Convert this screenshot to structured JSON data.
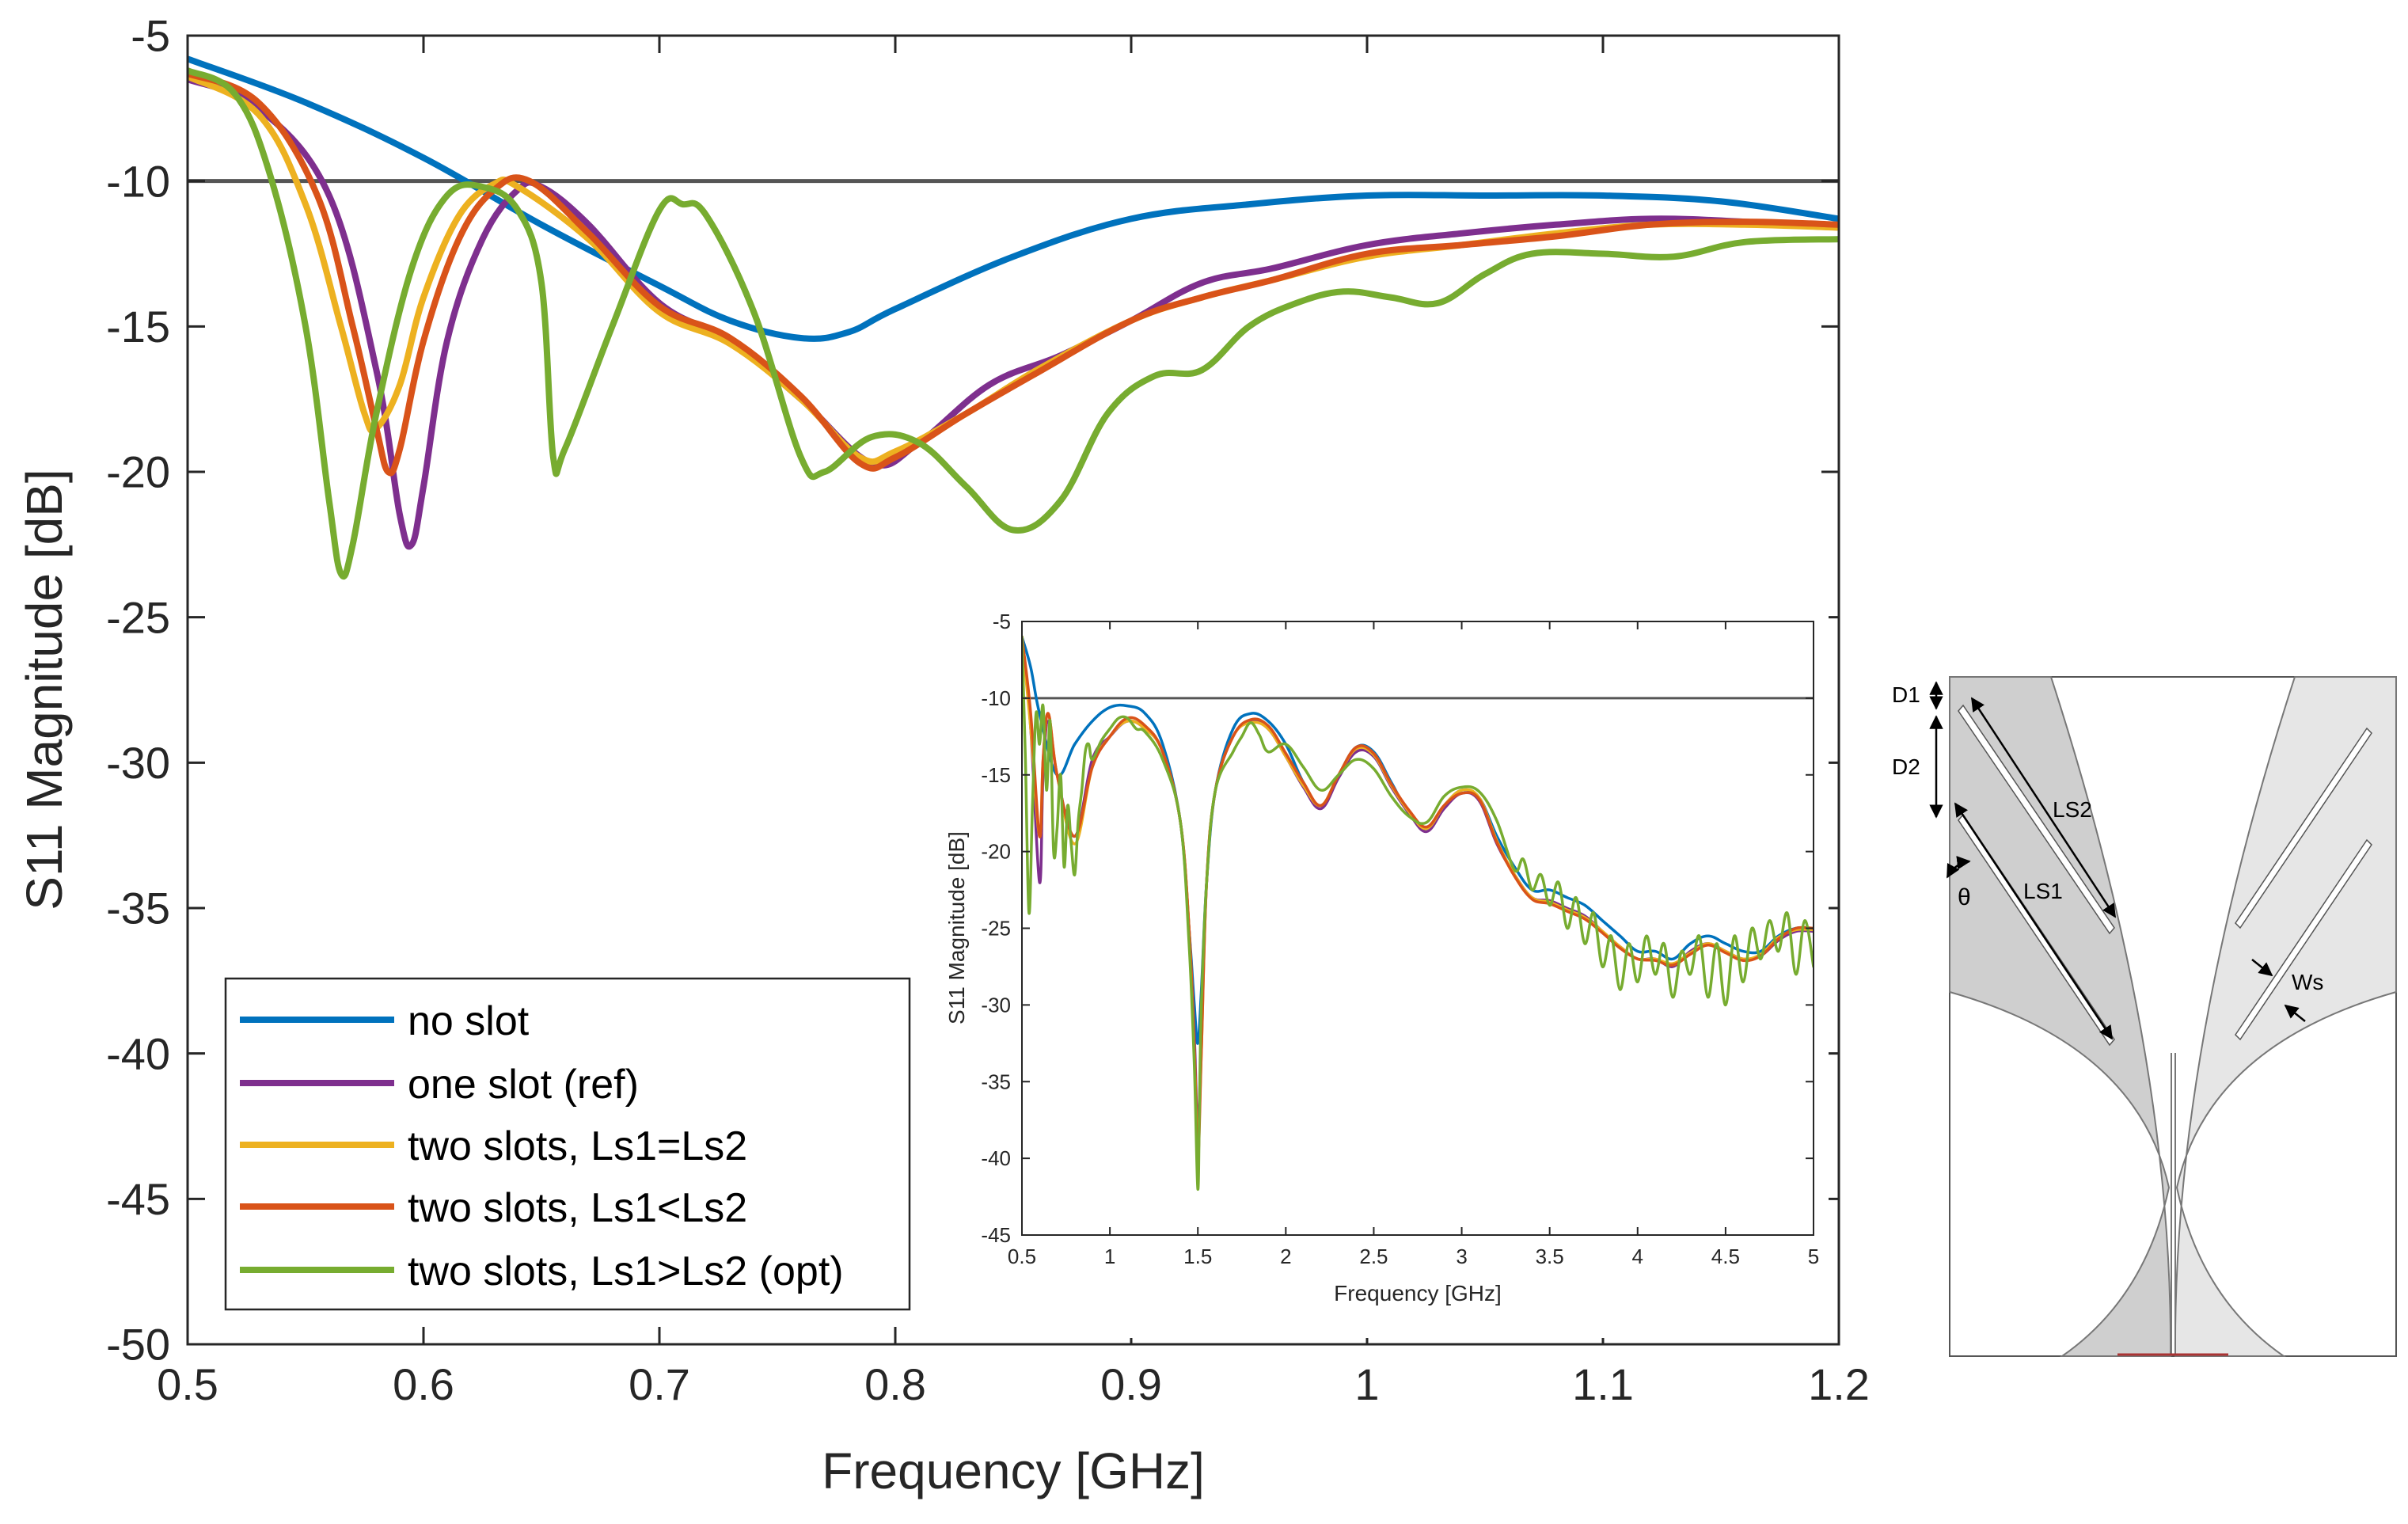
{
  "colors": {
    "no_slot": "#0072BD",
    "one_slot": "#7E2F8E",
    "ls1_eq_ls2": "#EDB120",
    "ls1_lt_ls2": "#D95319",
    "ls1_gt_ls2": "#77AC30",
    "threshold": "#555555",
    "diagram_dark": "#cfcfcf",
    "diagram_light": "#e6e6e6"
  },
  "chart_data": [
    {
      "id": "main",
      "type": "line",
      "title": "",
      "xlabel": "Frequency [GHz]",
      "ylabel": "S11 Magnitude [dB]",
      "xlim": [
        0.5,
        1.2
      ],
      "ylim": [
        -50,
        -5
      ],
      "xticks": [
        0.5,
        0.6,
        0.7,
        0.8,
        0.9,
        1,
        1.1,
        1.2
      ],
      "xtick_labels": [
        "0.5",
        "0.6",
        "0.7",
        "0.8",
        "0.9",
        "1",
        "1.1",
        "1.2"
      ],
      "yticks": [
        -50,
        -45,
        -40,
        -35,
        -30,
        -25,
        -20,
        -15,
        -10,
        -5
      ],
      "ytick_labels": [
        "-50",
        "-45",
        "-40",
        "-35",
        "-30",
        "-25",
        "-20",
        "-15",
        "-10",
        "-5"
      ],
      "grid": false,
      "legend_position": "bottom-left",
      "threshold": -10,
      "series": [
        {
          "name": "no slot",
          "color_key": "no_slot",
          "x": [
            0.5,
            0.55,
            0.6,
            0.65,
            0.7,
            0.73,
            0.76,
            0.78,
            0.8,
            0.85,
            0.9,
            0.95,
            1.0,
            1.05,
            1.1,
            1.15,
            1.2
          ],
          "y": [
            -5.8,
            -7.3,
            -9.2,
            -11.5,
            -13.6,
            -14.8,
            -15.4,
            -15.2,
            -14.4,
            -12.6,
            -11.3,
            -10.8,
            -10.5,
            -10.5,
            -10.5,
            -10.7,
            -11.3
          ]
        },
        {
          "name": "one slot (ref)",
          "color_key": "one_slot",
          "x": [
            0.5,
            0.53,
            0.56,
            0.58,
            0.59,
            0.595,
            0.6,
            0.61,
            0.625,
            0.64,
            0.65,
            0.67,
            0.7,
            0.73,
            0.76,
            0.79,
            0.81,
            0.84,
            0.87,
            0.9,
            0.93,
            0.96,
            1.0,
            1.04,
            1.08,
            1.12,
            1.16,
            1.2
          ],
          "y": [
            -6.5,
            -7.5,
            -10.5,
            -16.5,
            -21.5,
            -22.5,
            -20.5,
            -15.5,
            -12,
            -10.3,
            -10.2,
            -11.5,
            -14.2,
            -15.5,
            -17.5,
            -19.7,
            -19,
            -17,
            -16,
            -14.8,
            -13.5,
            -13,
            -12.2,
            -11.8,
            -11.5,
            -11.3,
            -11.4,
            -11.6
          ]
        },
        {
          "name": "two slots, Ls1=Ls2",
          "color_key": "ls1_eq_ls2",
          "x": [
            0.5,
            0.53,
            0.55,
            0.565,
            0.575,
            0.58,
            0.59,
            0.6,
            0.615,
            0.63,
            0.64,
            0.67,
            0.7,
            0.73,
            0.76,
            0.785,
            0.8,
            0.83,
            0.86,
            0.9,
            0.93,
            0.96,
            1.0,
            1.04,
            1.08,
            1.12,
            1.16,
            1.2
          ],
          "y": [
            -6.4,
            -7.7,
            -10.8,
            -15,
            -18,
            -18.5,
            -17,
            -14,
            -11.2,
            -10.1,
            -10.2,
            -12,
            -14.5,
            -15.6,
            -17.5,
            -19.5,
            -19.3,
            -18,
            -16.5,
            -14.8,
            -14,
            -13.4,
            -12.6,
            -12.2,
            -11.8,
            -11.5,
            -11.5,
            -11.6
          ]
        },
        {
          "name": "two slots, Ls1<Ls2",
          "color_key": "ls1_lt_ls2",
          "x": [
            0.5,
            0.53,
            0.555,
            0.57,
            0.58,
            0.585,
            0.59,
            0.6,
            0.615,
            0.63,
            0.645,
            0.67,
            0.7,
            0.73,
            0.76,
            0.785,
            0.8,
            0.83,
            0.86,
            0.9,
            0.93,
            0.96,
            1.0,
            1.04,
            1.08,
            1.12,
            1.16,
            1.2
          ],
          "y": [
            -6.3,
            -7.3,
            -10.5,
            -15,
            -18.5,
            -20,
            -19.2,
            -15.5,
            -12,
            -10.3,
            -10,
            -11.8,
            -14.3,
            -15.4,
            -17.4,
            -19.7,
            -19.5,
            -18,
            -16.6,
            -14.8,
            -14,
            -13.4,
            -12.5,
            -12.2,
            -11.9,
            -11.5,
            -11.4,
            -11.5
          ]
        },
        {
          "name": "two slots, Ls1>Ls2 (opt)",
          "color_key": "ls1_gt_ls2",
          "x": [
            0.5,
            0.52,
            0.535,
            0.55,
            0.56,
            0.565,
            0.57,
            0.58,
            0.595,
            0.61,
            0.625,
            0.64,
            0.65,
            0.655,
            0.66,
            0.68,
            0.7,
            0.71,
            0.72,
            0.74,
            0.76,
            0.77,
            0.79,
            0.81,
            0.83,
            0.85,
            0.87,
            0.89,
            0.91,
            0.93,
            0.95,
            0.97,
            0.99,
            1.01,
            1.03,
            1.05,
            1.07,
            1.1,
            1.13,
            1.16,
            1.2
          ],
          "y": [
            -6.2,
            -7,
            -9.8,
            -15,
            -21,
            -23.5,
            -22.5,
            -18,
            -13,
            -10.5,
            -10.2,
            -11,
            -13.5,
            -19.5,
            -19.2,
            -15,
            -11,
            -10.8,
            -11.2,
            -14.5,
            -19.5,
            -20,
            -18.8,
            -19,
            -20.5,
            -22,
            -21,
            -18,
            -16.7,
            -16.5,
            -15,
            -14.2,
            -13.8,
            -14,
            -14.2,
            -13.2,
            -12.5,
            -12.5,
            -12.6,
            -12.1,
            -12
          ]
        }
      ]
    },
    {
      "id": "inset",
      "type": "line",
      "title": "",
      "xlabel": "Frequency [GHz]",
      "ylabel": "S11 Magnitude [dB]",
      "xlim": [
        0.5,
        5
      ],
      "ylim": [
        -45,
        -5
      ],
      "xticks": [
        0.5,
        1,
        1.5,
        2,
        2.5,
        3,
        3.5,
        4,
        4.5,
        5
      ],
      "xtick_labels": [
        "0.5",
        "1",
        "1.5",
        "2",
        "2.5",
        "3",
        "3.5",
        "4",
        "4.5",
        "5"
      ],
      "yticks": [
        -45,
        -40,
        -35,
        -30,
        -25,
        -20,
        -15,
        -10,
        -5
      ],
      "ytick_labels": [
        "-45",
        "-40",
        "-35",
        "-30",
        "-25",
        "-20",
        "-15",
        "-10",
        "-5"
      ],
      "grid": false,
      "threshold": -10,
      "series": [
        {
          "name": "no slot",
          "color_key": "no_slot",
          "x": [
            0.5,
            0.55,
            0.6,
            0.7,
            0.8,
            0.9,
            1.0,
            1.1,
            1.2,
            1.3,
            1.4,
            1.45,
            1.48,
            1.5,
            1.52,
            1.55,
            1.6,
            1.7,
            1.8,
            1.9,
            2.0,
            2.1,
            2.2,
            2.3,
            2.4,
            2.5,
            2.6,
            2.7,
            2.8,
            2.9,
            3.0,
            3.1,
            3.2,
            3.3,
            3.4,
            3.5,
            3.6,
            3.7,
            3.8,
            3.9,
            4.0,
            4.1,
            4.2,
            4.3,
            4.4,
            4.5,
            4.6,
            4.7,
            4.8,
            4.9,
            5.0
          ],
          "y": [
            -6,
            -8,
            -11,
            -15,
            -13,
            -11.5,
            -10.6,
            -10.5,
            -11,
            -13,
            -18,
            -25,
            -30,
            -32.5,
            -29,
            -22,
            -16,
            -12,
            -11,
            -11.5,
            -13,
            -15.5,
            -17,
            -15,
            -13.2,
            -13.5,
            -15.5,
            -17.5,
            -18.5,
            -17,
            -16,
            -16.5,
            -19,
            -21,
            -22.5,
            -22.5,
            -23,
            -23.5,
            -24.5,
            -25.5,
            -26.5,
            -26.5,
            -27,
            -26,
            -25.5,
            -26,
            -26.5,
            -26.5,
            -25.5,
            -25,
            -25
          ]
        },
        {
          "name": "one slot (ref)",
          "color_key": "one_slot",
          "x": [
            0.5,
            0.55,
            0.6,
            0.62,
            0.65,
            0.7,
            0.8,
            0.9,
            1.0,
            1.1,
            1.2,
            1.3,
            1.4,
            1.45,
            1.48,
            1.5,
            1.52,
            1.55,
            1.6,
            1.7,
            1.8,
            1.9,
            2.0,
            2.1,
            2.2,
            2.3,
            2.4,
            2.5,
            2.6,
            2.7,
            2.8,
            2.9,
            3.0,
            3.1,
            3.2,
            3.3,
            3.4,
            3.5,
            3.6,
            3.7,
            3.8,
            3.9,
            4.0,
            4.1,
            4.2,
            4.3,
            4.4,
            4.5,
            4.6,
            4.7,
            4.8,
            4.9,
            5.0
          ],
          "y": [
            -6,
            -12,
            -22,
            -15,
            -11.5,
            -15,
            -19,
            -14,
            -12.5,
            -11.5,
            -12,
            -13.5,
            -18,
            -25,
            -32,
            -38,
            -32,
            -22,
            -16,
            -12.5,
            -11.5,
            -12,
            -13.8,
            -15.8,
            -17.2,
            -15.2,
            -13.5,
            -13.8,
            -15.8,
            -17.5,
            -18.7,
            -17.2,
            -16.2,
            -16.7,
            -19.5,
            -21.5,
            -23,
            -23.2,
            -23.7,
            -24.2,
            -25.2,
            -26.2,
            -27,
            -27,
            -27.5,
            -26.5,
            -26,
            -26.5,
            -27,
            -26.8,
            -25.8,
            -25.2,
            -25.2
          ]
        },
        {
          "name": "two slots, Ls1=Ls2",
          "color_key": "ls1_eq_ls2",
          "x": [
            0.5,
            0.55,
            0.6,
            0.62,
            0.65,
            0.7,
            0.8,
            0.9,
            1.0,
            1.1,
            1.2,
            1.3,
            1.4,
            1.45,
            1.48,
            1.5,
            1.52,
            1.55,
            1.6,
            1.7,
            1.8,
            1.9,
            2.0,
            2.1,
            2.2,
            2.3,
            2.4,
            2.5,
            2.6,
            2.7,
            2.8,
            2.9,
            3.0,
            3.1,
            3.2,
            3.3,
            3.4,
            3.5,
            3.6,
            3.7,
            3.8,
            3.9,
            4.0,
            4.1,
            4.2,
            4.3,
            4.4,
            4.5,
            4.6,
            4.7,
            4.8,
            4.9,
            5.0
          ],
          "y": [
            -6,
            -12,
            -19,
            -14,
            -11,
            -15,
            -19.5,
            -14.5,
            -12.5,
            -11.5,
            -12,
            -13.5,
            -18,
            -25,
            -33,
            -39,
            -33,
            -22,
            -16,
            -12.5,
            -11.6,
            -12,
            -13.8,
            -15.7,
            -17,
            -15,
            -13.3,
            -13.7,
            -15.7,
            -17.4,
            -18.5,
            -17,
            -16,
            -16.5,
            -19.3,
            -21.5,
            -23,
            -23.3,
            -23.8,
            -24.3,
            -25.2,
            -26.2,
            -27,
            -27,
            -27.3,
            -26.6,
            -26,
            -26.5,
            -27,
            -26.7,
            -25.6,
            -25.1,
            -25.1
          ]
        },
        {
          "name": "two slots, Ls1<Ls2",
          "color_key": "ls1_lt_ls2",
          "x": [
            0.5,
            0.55,
            0.6,
            0.62,
            0.65,
            0.7,
            0.8,
            0.9,
            1.0,
            1.1,
            1.2,
            1.3,
            1.4,
            1.45,
            1.48,
            1.5,
            1.52,
            1.55,
            1.6,
            1.7,
            1.8,
            1.9,
            2.0,
            2.1,
            2.2,
            2.3,
            2.4,
            2.5,
            2.6,
            2.7,
            2.8,
            2.9,
            3.0,
            3.1,
            3.2,
            3.3,
            3.4,
            3.5,
            3.6,
            3.7,
            3.8,
            3.9,
            4.0,
            4.1,
            4.2,
            4.3,
            4.4,
            4.5,
            4.6,
            4.7,
            4.8,
            4.9,
            5.0
          ],
          "y": [
            -6,
            -11,
            -19,
            -14,
            -11,
            -15,
            -19,
            -14.5,
            -12.5,
            -11.3,
            -11.8,
            -13.5,
            -18,
            -25,
            -33,
            -40,
            -33,
            -22,
            -16,
            -12.5,
            -11.4,
            -11.8,
            -13.6,
            -15.5,
            -17,
            -15,
            -13.2,
            -13.6,
            -15.6,
            -17.3,
            -18.4,
            -17,
            -16.2,
            -16.6,
            -19.4,
            -21.6,
            -23.1,
            -23.4,
            -23.9,
            -24.4,
            -25.3,
            -26.3,
            -27,
            -27.1,
            -27.4,
            -26.7,
            -26.1,
            -26.6,
            -27.1,
            -26.8,
            -25.7,
            -25,
            -25
          ]
        },
        {
          "name": "two slots, Ls1>Ls2 (opt)",
          "color_key": "ls1_gt_ls2",
          "x": [
            0.5,
            0.52,
            0.54,
            0.56,
            0.58,
            0.6,
            0.62,
            0.64,
            0.66,
            0.68,
            0.7,
            0.72,
            0.74,
            0.76,
            0.78,
            0.8,
            0.82,
            0.84,
            0.86,
            0.88,
            0.9,
            0.95,
            1.0,
            1.05,
            1.1,
            1.15,
            1.2,
            1.3,
            1.4,
            1.45,
            1.48,
            1.5,
            1.51,
            1.52,
            1.55,
            1.6,
            1.7,
            1.75,
            1.8,
            1.85,
            1.9,
            2.0,
            2.1,
            2.2,
            2.3,
            2.4,
            2.5,
            2.6,
            2.7,
            2.8,
            2.9,
            3.0,
            3.1,
            3.2,
            3.3,
            3.35,
            3.4,
            3.45,
            3.5,
            3.55,
            3.6,
            3.65,
            3.7,
            3.75,
            3.8,
            3.85,
            3.9,
            3.95,
            4.0,
            4.05,
            4.1,
            4.15,
            4.2,
            4.25,
            4.3,
            4.35,
            4.4,
            4.45,
            4.5,
            4.55,
            4.6,
            4.65,
            4.7,
            4.75,
            4.8,
            4.85,
            4.9,
            4.95,
            5.0
          ],
          "y": [
            -6,
            -14,
            -24,
            -17,
            -11,
            -13,
            -10.5,
            -16,
            -11.5,
            -20,
            -18.5,
            -15,
            -21,
            -17,
            -19.5,
            -21.5,
            -18,
            -16,
            -13.5,
            -13,
            -14,
            -12.8,
            -12,
            -11.3,
            -11.3,
            -12,
            -12.2,
            -14,
            -18,
            -26,
            -34,
            -42,
            -36,
            -30,
            -22,
            -16,
            -13.5,
            -12.5,
            -11.6,
            -12.4,
            -13.5,
            -13,
            -14.5,
            -16,
            -15,
            -14,
            -14.6,
            -16.4,
            -17.7,
            -18.1,
            -16.4,
            -15.8,
            -16.1,
            -18,
            -21.2,
            -20.5,
            -22.5,
            -21.5,
            -23.5,
            -22,
            -25,
            -23,
            -26,
            -24,
            -27.5,
            -25.5,
            -29,
            -26,
            -28.5,
            -25.5,
            -28,
            -26,
            -29.5,
            -26.5,
            -28,
            -25.5,
            -29.5,
            -26,
            -30,
            -25.5,
            -28.5,
            -25,
            -27,
            -24.5,
            -26.5,
            -24,
            -28,
            -24.5,
            -27.5
          ]
        }
      ]
    }
  ],
  "diagram": {
    "labels": {
      "d1": "D1",
      "d2": "D2",
      "ls2": "LS2",
      "ls1": "LS1",
      "theta": "θ",
      "ws": "Ws"
    }
  }
}
